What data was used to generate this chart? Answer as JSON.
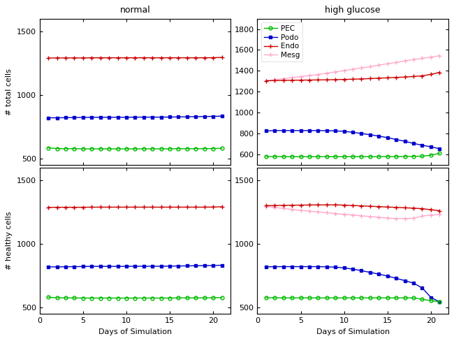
{
  "days": [
    1,
    2,
    3,
    4,
    5,
    6,
    7,
    8,
    9,
    10,
    11,
    12,
    13,
    14,
    15,
    16,
    17,
    18,
    19,
    20,
    21
  ],
  "normal_total_PEC": [
    583,
    578,
    577,
    577,
    576,
    576,
    576,
    576,
    576,
    576,
    576,
    576,
    576,
    576,
    576,
    577,
    577,
    577,
    577,
    578,
    580
  ],
  "normal_total_Podo": [
    820,
    820,
    821,
    822,
    823,
    824,
    824,
    824,
    824,
    824,
    825,
    825,
    825,
    825,
    826,
    827,
    828,
    829,
    830,
    831,
    833
  ],
  "normal_total_Endo": [
    1290,
    1291,
    1291,
    1291,
    1291,
    1292,
    1292,
    1292,
    1292,
    1292,
    1292,
    1292,
    1292,
    1292,
    1292,
    1292,
    1292,
    1292,
    1292,
    1293,
    1295
  ],
  "hg_total_PEC": [
    580,
    579,
    578,
    578,
    578,
    578,
    578,
    578,
    578,
    578,
    578,
    578,
    578,
    578,
    579,
    579,
    580,
    581,
    583,
    592,
    610
  ],
  "hg_total_Podo": [
    825,
    828,
    828,
    828,
    828,
    828,
    828,
    827,
    825,
    820,
    812,
    800,
    788,
    775,
    760,
    743,
    725,
    705,
    688,
    672,
    655
  ],
  "hg_total_Endo": [
    1305,
    1307,
    1308,
    1310,
    1311,
    1312,
    1313,
    1314,
    1316,
    1318,
    1320,
    1323,
    1326,
    1330,
    1333,
    1337,
    1341,
    1346,
    1352,
    1366,
    1385
  ],
  "hg_total_Mesg": [
    1305,
    1315,
    1325,
    1335,
    1345,
    1355,
    1365,
    1378,
    1390,
    1403,
    1415,
    1428,
    1440,
    1455,
    1468,
    1480,
    1495,
    1508,
    1520,
    1532,
    1545
  ],
  "normal_healthy_PEC": [
    582,
    577,
    576,
    576,
    575,
    575,
    575,
    575,
    575,
    575,
    575,
    575,
    575,
    575,
    575,
    576,
    576,
    576,
    576,
    577,
    579
  ],
  "normal_healthy_Podo": [
    820,
    820,
    821,
    822,
    823,
    824,
    824,
    824,
    824,
    824,
    825,
    825,
    825,
    825,
    826,
    827,
    828,
    829,
    830,
    831,
    833
  ],
  "normal_healthy_Endo": [
    1288,
    1289,
    1289,
    1289,
    1289,
    1290,
    1290,
    1290,
    1290,
    1290,
    1290,
    1290,
    1290,
    1290,
    1290,
    1290,
    1290,
    1290,
    1290,
    1291,
    1293
  ],
  "hg_healthy_PEC": [
    578,
    577,
    576,
    576,
    576,
    576,
    576,
    576,
    576,
    576,
    576,
    576,
    576,
    576,
    576,
    576,
    576,
    576,
    565,
    555,
    545
  ],
  "hg_healthy_Podo": [
    820,
    822,
    822,
    822,
    822,
    822,
    822,
    820,
    818,
    812,
    803,
    790,
    777,
    763,
    748,
    730,
    712,
    692,
    655,
    580,
    545
  ],
  "hg_healthy_Endo": [
    1302,
    1303,
    1304,
    1305,
    1306,
    1307,
    1308,
    1308,
    1308,
    1306,
    1303,
    1300,
    1297,
    1294,
    1291,
    1288,
    1285,
    1282,
    1278,
    1270,
    1262
  ],
  "hg_healthy_Mesg": [
    1295,
    1288,
    1280,
    1272,
    1265,
    1258,
    1252,
    1246,
    1240,
    1234,
    1228,
    1222,
    1216,
    1210,
    1204,
    1200,
    1200,
    1202,
    1220,
    1228,
    1232
  ],
  "color_PEC": "#00bb00",
  "color_Podo": "#0000cc",
  "color_Endo": "#cc0000",
  "color_Mesg": "#ffaacc",
  "title_normal": "normal",
  "title_hg": "high glucose",
  "ylabel_top": "# total cells",
  "ylabel_bottom": "# healthy cells",
  "xlabel": "Days of Simulation"
}
